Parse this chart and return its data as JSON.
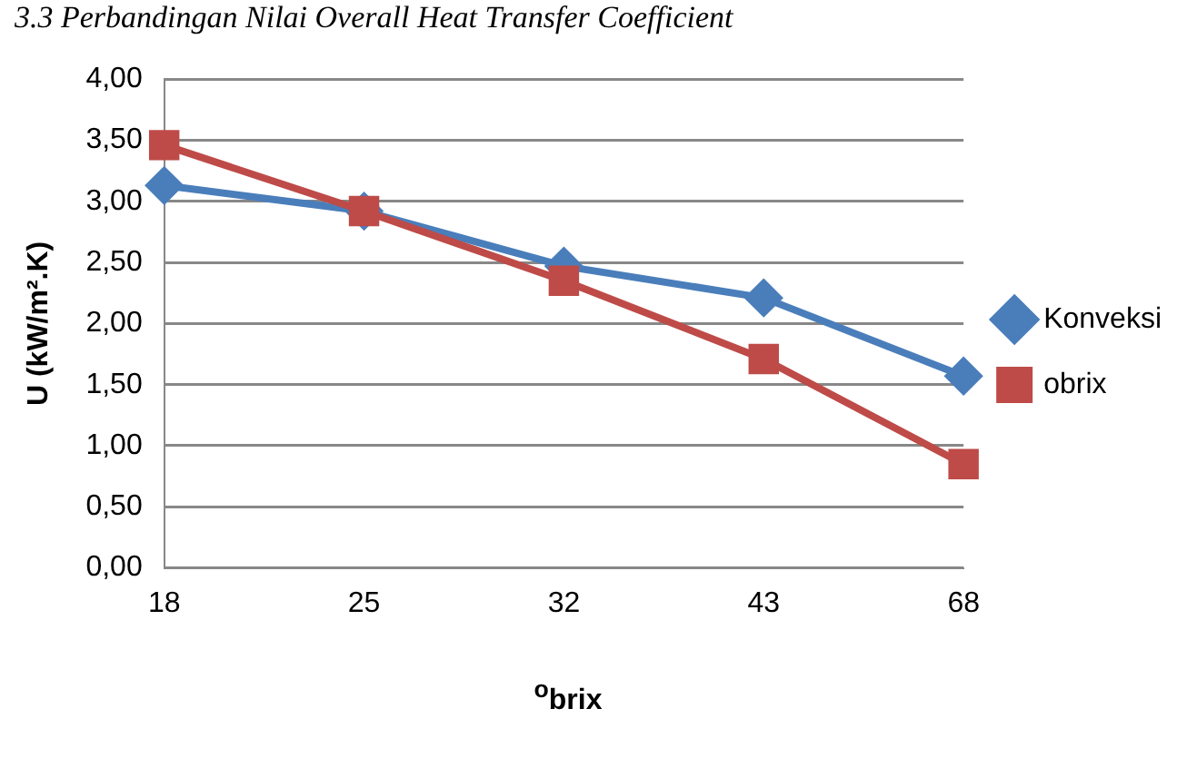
{
  "chart_data": {
    "type": "line",
    "title": "3.3 Perbandingan Nilai Overall Heat Transfer Coefficient",
    "categories": [
      "18",
      "25",
      "32",
      "43",
      "68"
    ],
    "series": [
      {
        "name": "Konveksi",
        "color": "#4a7ebb",
        "values": [
          3.13,
          2.92,
          2.47,
          2.21,
          1.57
        ],
        "marker": "diamond"
      },
      {
        "name": "obrix",
        "color": "#be4b48",
        "values": [
          3.46,
          2.92,
          2.35,
          1.71,
          0.85
        ],
        "marker": "square"
      }
    ],
    "xlabel": "$^{o}$brix",
    "ylabel": "U (kW/m².K)",
    "ylim": [
      0,
      4
    ],
    "yticks": [
      {
        "value": 0,
        "label": "0,00"
      },
      {
        "value": 0.5,
        "label": "0,50"
      },
      {
        "value": 1,
        "label": "1,00"
      },
      {
        "value": 1.5,
        "label": "1,50"
      },
      {
        "value": 2,
        "label": "2,00"
      },
      {
        "value": 2.5,
        "label": "2,50"
      },
      {
        "value": 3,
        "label": "3,00"
      },
      {
        "value": 3.5,
        "label": "3,50"
      },
      {
        "value": 4,
        "label": "4,00"
      }
    ],
    "grid": "y",
    "legend": "right"
  }
}
